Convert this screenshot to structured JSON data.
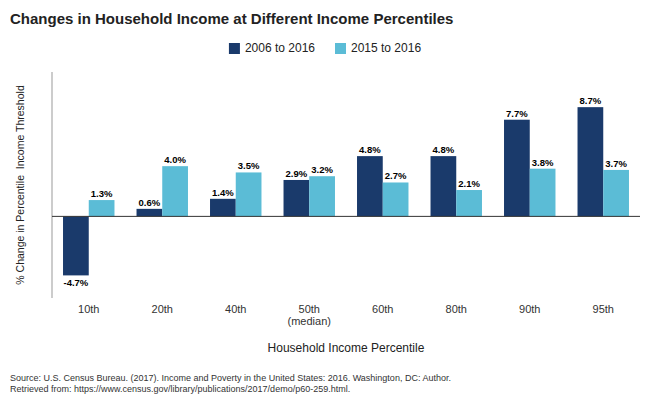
{
  "chart_data": {
    "type": "bar",
    "title": "Changes in Household Income at Different Income Percentiles",
    "categories": [
      "10th",
      "20th",
      "40th",
      "50th\n(median)",
      "60th",
      "80th",
      "90th",
      "95th"
    ],
    "series": [
      {
        "name": "2006 to 2016",
        "color": "#1a3a6b",
        "values": [
          -4.7,
          0.6,
          1.4,
          2.9,
          4.8,
          4.8,
          7.7,
          8.7
        ],
        "value_labels": [
          "-4.7%",
          "0.6%",
          "1.4%",
          "2.9%",
          "4.8%",
          "4.8%",
          "7.7%",
          "8.7%"
        ]
      },
      {
        "name": "2015 to 2016",
        "color": "#5bbcd6",
        "values": [
          1.3,
          4.0,
          3.5,
          3.2,
          2.7,
          2.1,
          3.8,
          3.7
        ],
        "value_labels": [
          "1.3%",
          "4.0%",
          "3.5%",
          "3.2%",
          "2.7%",
          "2.1%",
          "3.8%",
          "3.7%"
        ]
      }
    ],
    "xlabel": "Household Income Percentile",
    "ylabel": "% Change in Percentile  Income Threshold",
    "ylim": [
      -6.5,
      11.5
    ],
    "tick_labels": "x",
    "grid": false,
    "legend": "top",
    "data_labels": true,
    "annotations": [
      "Source: U.S. Census Bureau. (2017). Income and Poverty in the United States: 2016. Washington, DC: Author.\nRetrieved from: https://www.census.gov/library/publications/2017/demo/p60-259.html."
    ]
  }
}
